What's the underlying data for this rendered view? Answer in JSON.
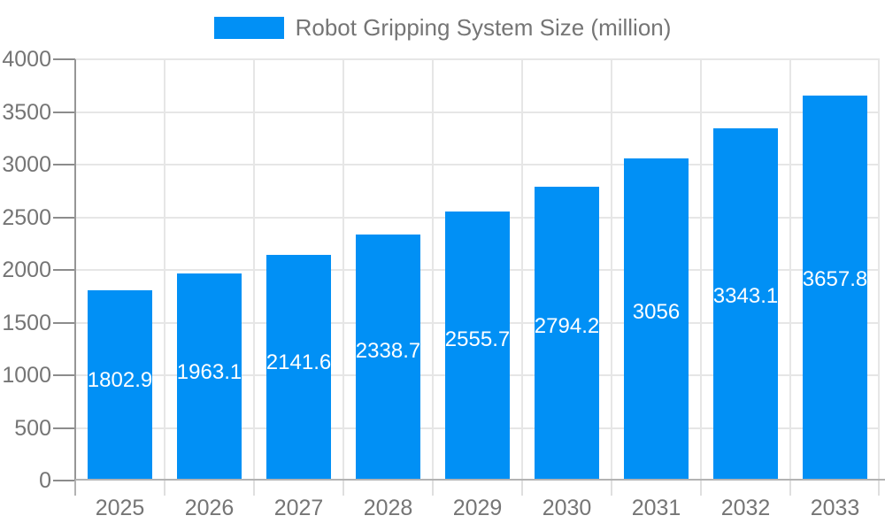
{
  "legend": {
    "series_label": "Robot Gripping System Size (million)",
    "swatch_color": "#0190F5"
  },
  "chart_data": {
    "type": "bar",
    "title": "Robot Gripping System Size (million)",
    "categories": [
      "2025",
      "2026",
      "2027",
      "2028",
      "2029",
      "2030",
      "2031",
      "2032",
      "2033"
    ],
    "values": [
      1802.9,
      1963.1,
      2141.6,
      2338.7,
      2555.7,
      2794.2,
      3056,
      3343.1,
      3657.8
    ],
    "bar_labels": [
      "1802.9",
      "1963.1",
      "2141.6",
      "2338.7",
      "2555.7",
      "2794.2",
      "3056",
      "3343.1",
      "3657.8"
    ],
    "xlabel": "",
    "ylabel": "",
    "ylim": [
      0,
      4000
    ],
    "ytick_step": 500,
    "yticks": [
      0,
      500,
      1000,
      1500,
      2000,
      2500,
      3000,
      3500,
      4000
    ],
    "grid": true,
    "legend_position": "top",
    "colors": {
      "bar": "#0190F5",
      "grid_line": "#E6E6E6",
      "y_axis_line": "#969696",
      "y_tick": "#8C8C8C",
      "baseline": "#B3B3B3",
      "x_tick": "#DFDFDF",
      "x_tick_first": "#B3B3B3",
      "axis_label_text": "#757575",
      "bar_label_text": "#FFFFFF",
      "background": "#FFFFFF"
    }
  }
}
